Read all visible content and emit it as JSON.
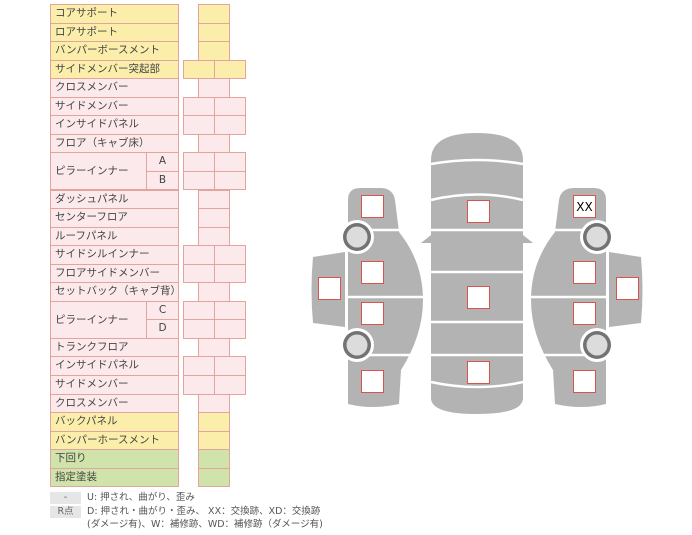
{
  "colors": {
    "yellow": "#fbeeab",
    "pink": "#fce9ec",
    "green": "#cfe3aa",
    "border": "#e2a49c",
    "body": "#b3b3b3",
    "mark_border": "#d9534f"
  },
  "rows": [
    {
      "label": "コアサポート",
      "color": "y",
      "cells": 1
    },
    {
      "label": "ロアサポート",
      "color": "y",
      "cells": 1
    },
    {
      "label": "バンパーボースメント",
      "color": "y",
      "cells": 1
    },
    {
      "label": "サイドメンバー突起部",
      "color": "y",
      "cells": 2
    },
    {
      "label": "クロスメンバー",
      "color": "p",
      "cells": 1
    },
    {
      "label": "サイドメンバー",
      "color": "p",
      "cells": 2
    },
    {
      "label": "インサイドパネル",
      "color": "p",
      "cells": 2
    },
    {
      "label": "フロア（キャブ床）",
      "color": "p",
      "cells": 1
    },
    {
      "label": "ピラーインナー",
      "color": "p",
      "cells": 2,
      "subs": [
        "A",
        "B"
      ]
    },
    {
      "label": "ダッシュパネル",
      "color": "p",
      "cells": 1
    },
    {
      "label": "センターフロア",
      "color": "p",
      "cells": 1
    },
    {
      "label": "ルーフパネル",
      "color": "p",
      "cells": 1
    },
    {
      "label": "サイドシルインナー",
      "color": "p",
      "cells": 2
    },
    {
      "label": "フロアサイドメンバー",
      "color": "p",
      "cells": 2
    },
    {
      "label": "セットバック（キャブ背）",
      "color": "p",
      "cells": 1
    },
    {
      "label": "ピラーインナー",
      "color": "p",
      "cells": 2,
      "subs": [
        "C",
        "D"
      ]
    },
    {
      "label": "トランクフロア",
      "color": "p",
      "cells": 1
    },
    {
      "label": "インサイドパネル",
      "color": "p",
      "cells": 2
    },
    {
      "label": "サイドメンバー",
      "color": "p",
      "cells": 2
    },
    {
      "label": "クロスメンバー",
      "color": "p",
      "cells": 1
    },
    {
      "label": "バックパネル",
      "color": "y",
      "cells": 1
    },
    {
      "label": "バンパーホースメント",
      "color": "y",
      "cells": 1
    },
    {
      "label": "下回り",
      "color": "g",
      "cells": 1
    },
    {
      "label": "指定塗装",
      "color": "g",
      "cells": 1
    }
  ],
  "marks": [
    {
      "name": "left-front-fender",
      "value": ""
    },
    {
      "name": "left-front-door",
      "value": ""
    },
    {
      "name": "left-rear-door",
      "value": ""
    },
    {
      "name": "left-rear-quarter",
      "value": ""
    },
    {
      "name": "left-roof-side",
      "value": ""
    },
    {
      "name": "hood",
      "value": ""
    },
    {
      "name": "roof",
      "value": ""
    },
    {
      "name": "trunk",
      "value": ""
    },
    {
      "name": "right-front-fender",
      "value": "XX"
    },
    {
      "name": "right-front-door",
      "value": ""
    },
    {
      "name": "right-rear-door",
      "value": ""
    },
    {
      "name": "right-rear-quarter",
      "value": ""
    },
    {
      "name": "right-roof-side",
      "value": ""
    }
  ],
  "legend": {
    "dash_key": "-",
    "dash_text": "U: 押され、曲がり、歪み",
    "r_key": "R点",
    "r_text_1": "D: 押され・曲がり・歪み、 XX：交換跡、XD：交換跡",
    "r_text_2": "(ダメージ有)、W：補修跡、WD：補修跡（ダメージ有)"
  }
}
